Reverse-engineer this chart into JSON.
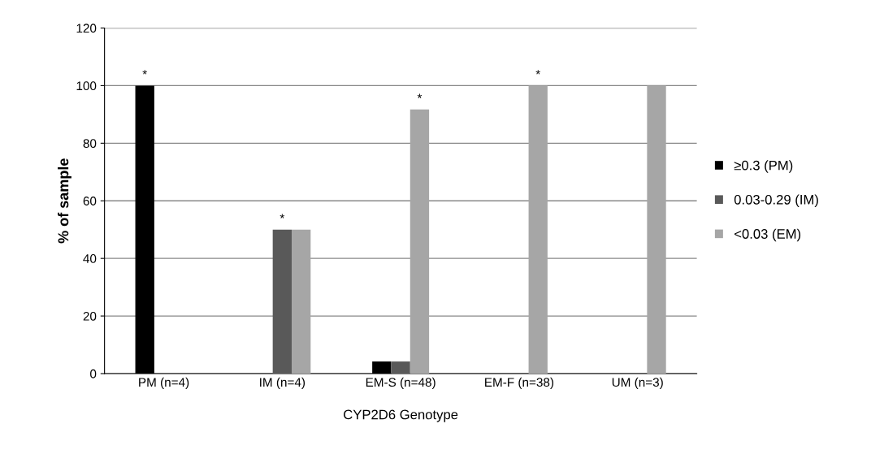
{
  "chart_data": {
    "type": "bar",
    "xlabel": "CYP2D6 Genotype",
    "ylabel": "% of sample",
    "categories": [
      "PM (n=4)",
      "IM (n=4)",
      "EM-S (n=48)",
      "EM-F (n=38)",
      "UM (n=3)"
    ],
    "series": [
      {
        "name": "≥0.3 (PM)",
        "color": "#000000",
        "values": [
          100,
          0,
          4.2,
          0,
          0
        ],
        "value_labels": [
          "*",
          null,
          null,
          null,
          null
        ]
      },
      {
        "name": "0.03-0.29 (IM)",
        "color": "#595959",
        "values": [
          0,
          50,
          4.2,
          0,
          0
        ],
        "value_labels": [
          null,
          "*",
          null,
          null,
          null
        ]
      },
      {
        "name": "<0.03 (EM)",
        "color": "#a6a6a6",
        "values": [
          0,
          50,
          91.7,
          100,
          100
        ],
        "value_labels": [
          null,
          null,
          "*",
          "*",
          null
        ]
      }
    ],
    "ylim": [
      0,
      120
    ],
    "yticks": [
      0,
      20,
      40,
      60,
      80,
      100,
      120
    ],
    "grid": "y",
    "legend": "right"
  }
}
